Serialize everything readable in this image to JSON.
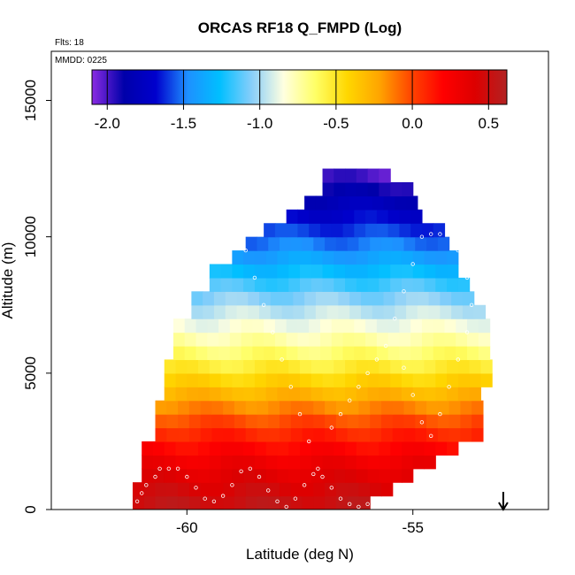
{
  "chart_data": {
    "type": "heatmap",
    "title": "ORCAS RF18 Q_FMPD (Log)",
    "flights_note": "Flts: 18",
    "date_note": "MMDD: 0225",
    "xlabel": "Latitude (deg N)",
    "ylabel": "Altitude (m)",
    "xlim": [
      -63.0,
      -52.0
    ],
    "ylim": [
      0,
      16800
    ],
    "x_ticks": [
      -60,
      -55
    ],
    "x_tick_labels": [
      "-60",
      "-55"
    ],
    "y_ticks": [
      0,
      5000,
      10000,
      15000
    ],
    "y_tick_labels": [
      "0",
      "5000",
      "10000",
      "15000"
    ],
    "colorbar": {
      "range": [
        -2.1,
        0.62
      ],
      "ticks": [
        -2.0,
        -1.5,
        -1.0,
        -0.5,
        0.0,
        0.5
      ],
      "tick_labels": [
        "-2.0",
        "-1.5",
        "-1.0",
        "-0.5",
        "0.0",
        "0.5"
      ],
      "colors": [
        "#8a2be2",
        "#0000aa",
        "#0000cd",
        "#1e90ff",
        "#00bfff",
        "#87cefa",
        "#ffffe0",
        "#ffff66",
        "#ffd700",
        "#ffa500",
        "#ff4500",
        "#ff0000",
        "#dd0000",
        "#b22222"
      ]
    },
    "color_field": {
      "description_profile": "log10 water vapor mixing ratio decreasing with altitude",
      "profile_altitude_m": [
        0,
        1500,
        3000,
        4500,
        5500,
        6500,
        8000,
        9500,
        11000,
        12500
      ],
      "profile_value": [
        0.55,
        0.35,
        0.05,
        -0.35,
        -0.6,
        -0.8,
        -1.1,
        -1.45,
        -1.75,
        -2.05
      ]
    },
    "domain_edges": {
      "altitude_m": [
        0,
        500,
        1000,
        1500,
        2000,
        2500,
        3000,
        3500,
        4000,
        4500,
        5000,
        5500,
        6000,
        6500,
        7000,
        7500,
        8000,
        8500,
        9000,
        9500,
        10000,
        10500,
        11000,
        11500,
        12000,
        12500
      ],
      "lat_min": [
        -61.2,
        -61.2,
        -61.0,
        -61.0,
        -61.0,
        -60.7,
        -60.7,
        -60.7,
        -60.5,
        -60.5,
        -60.5,
        -60.3,
        -60.3,
        -60.3,
        -59.9,
        -59.9,
        -59.5,
        -59.5,
        -59.0,
        -58.7,
        -58.3,
        -57.8,
        -57.4,
        -57.0,
        -57.0,
        -55.6
      ],
      "lat_max": [
        -56.0,
        -55.6,
        -55.2,
        -54.6,
        -54.0,
        -53.6,
        -53.5,
        -53.5,
        -53.5,
        -53.3,
        -53.3,
        -53.3,
        -53.3,
        -53.5,
        -53.5,
        -53.7,
        -53.8,
        -54.0,
        -54.1,
        -54.2,
        -54.5,
        -54.8,
        -55.0,
        -55.1,
        -55.5,
        -55.7
      ]
    },
    "flight_track": {
      "lat": [
        -61.1,
        -61.0,
        -60.9,
        -60.7,
        -60.6,
        -60.4,
        -60.2,
        -60.0,
        -59.8,
        -59.6,
        -59.4,
        -59.2,
        -59.0,
        -58.8,
        -58.6,
        -58.4,
        -58.2,
        -58.0,
        -57.8,
        -57.6,
        -57.4,
        -57.2,
        -57.0,
        -56.8,
        -56.6,
        -56.4,
        -56.2,
        -56.0,
        -57.1,
        -57.3,
        -57.5,
        -57.7,
        -57.9,
        -58.1,
        -58.3,
        -58.5,
        -58.7,
        -58.9,
        -59.0,
        -59.1,
        -59.2,
        -59.3,
        -59.4,
        -59.5,
        -59.6,
        -59.8,
        -60.0,
        -60.2,
        -60.4,
        -60.6,
        -60.8,
        -61.0,
        -56.8,
        -56.6,
        -56.4,
        -56.2,
        -56.0,
        -55.8,
        -55.6,
        -55.4,
        -55.2,
        -55.0,
        -54.8,
        -54.6,
        -54.4,
        -54.2,
        -54.0,
        -53.8,
        -53.7,
        -53.8,
        -54.0,
        -54.2,
        -54.4,
        -54.6,
        -54.8,
        -55.0,
        -55.2
      ],
      "alt_m": [
        300,
        600,
        900,
        1200,
        1500,
        1500,
        1500,
        1200,
        800,
        400,
        300,
        500,
        900,
        1400,
        1500,
        1200,
        700,
        300,
        100,
        400,
        900,
        1300,
        1200,
        800,
        400,
        200,
        100,
        200,
        1500,
        2500,
        3500,
        4500,
        5500,
        6500,
        7500,
        8500,
        9500,
        10500,
        11500,
        12200,
        12200,
        12200,
        12200,
        12200,
        12000,
        11000,
        10000,
        9000,
        8000,
        7800,
        7800,
        7800,
        3000,
        3500,
        4000,
        4500,
        5000,
        5500,
        6000,
        7000,
        8000,
        9000,
        10000,
        10100,
        10100,
        10100,
        9500,
        8500,
        7500,
        6500,
        5500,
        4500,
        3500,
        2700,
        3200,
        4200,
        5200
      ]
    },
    "marker_latitude": -53.0
  }
}
